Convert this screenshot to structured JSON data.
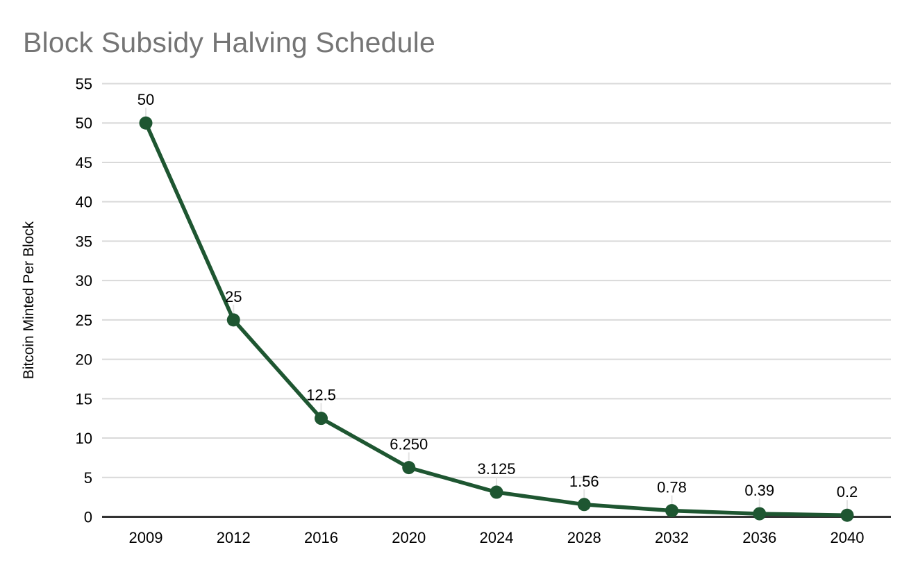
{
  "chart_data": {
    "type": "line",
    "title": "Block Subsidy Halving Schedule",
    "xlabel": "",
    "ylabel": "Bitcoin Minted Per Block",
    "categories": [
      "2009",
      "2012",
      "2016",
      "2020",
      "2024",
      "2028",
      "2032",
      "2036",
      "2040"
    ],
    "series": [
      {
        "name": "Bitcoin Minted Per Block",
        "values": [
          50,
          25,
          12.5,
          6.25,
          3.125,
          1.56,
          0.78,
          0.39,
          0.2
        ],
        "point_labels": [
          "50",
          "25",
          "12.5",
          "6.250",
          "3.125",
          "1.56",
          "0.78",
          "0.39",
          "0.2"
        ]
      }
    ],
    "ylim": [
      0,
      55
    ],
    "yticks": [
      0,
      5,
      10,
      15,
      20,
      25,
      30,
      35,
      40,
      45,
      50,
      55
    ],
    "grid": true,
    "legend_position": "none",
    "colors": {
      "line": "#1e5631",
      "marker": "#1e5631",
      "gridline": "#d9d9d9",
      "axis_line": "#333333",
      "title_text": "#757575",
      "label_text": "#000000",
      "tick_text": "#000000",
      "leader_line": "#e3e3e3",
      "background": "#ffffff"
    }
  }
}
